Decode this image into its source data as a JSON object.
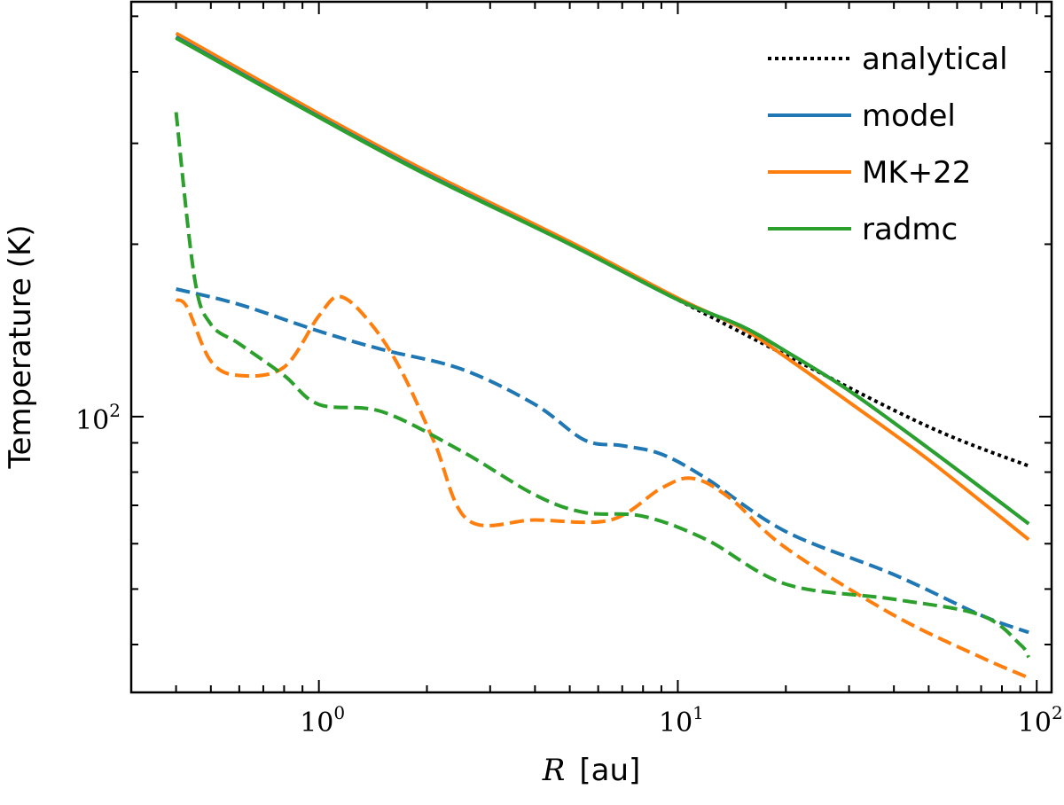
{
  "chart_data": {
    "type": "line",
    "title": "",
    "xlabel_var": "R",
    "xlabel_unit": "[au]",
    "ylabel": "Temperature (K)",
    "xscale": "log",
    "yscale": "log",
    "xlim": [
      0.3,
      110
    ],
    "ylim": [
      33,
      530
    ],
    "x_ticks": [
      {
        "value": 1,
        "base": "10",
        "exp": "0"
      },
      {
        "value": 10,
        "base": "10",
        "exp": "1"
      },
      {
        "value": 100,
        "base": "10",
        "exp": "2"
      }
    ],
    "y_ticks": [
      {
        "value": 100,
        "base": "10",
        "exp": "2"
      }
    ],
    "legend_position": "top-right",
    "legend": [
      {
        "label": "analytical",
        "color": "#000000",
        "style": "dotted"
      },
      {
        "label": "model",
        "color": "#1f77b4",
        "style": "solid"
      },
      {
        "label": "MK+22",
        "color": "#ff7f0e",
        "style": "solid"
      },
      {
        "label": "radmc",
        "color": "#2ca02c",
        "style": "solid"
      }
    ],
    "series": [
      {
        "name": "analytical",
        "color": "#000000",
        "style": "dotted",
        "x": [
          0.4,
          1,
          2,
          5,
          10,
          20,
          50,
          95
        ],
        "y": [
          460,
          334,
          265,
          200,
          160,
          128,
          96,
          82
        ]
      },
      {
        "name": "model",
        "color": "#1f77b4",
        "style": "solid",
        "x": [
          0.4,
          1,
          2,
          5,
          10,
          15,
          20,
          30,
          50,
          95
        ],
        "y": [
          460,
          334,
          265,
          200,
          160,
          144,
          130,
          111,
          88,
          65
        ]
      },
      {
        "name": "MK+22",
        "color": "#ff7f0e",
        "style": "solid",
        "x": [
          0.4,
          1,
          2,
          5,
          10,
          15,
          20,
          30,
          50,
          95
        ],
        "y": [
          467,
          338,
          268,
          202,
          161,
          143,
          127,
          106,
          84,
          61
        ]
      },
      {
        "name": "radmc",
        "color": "#2ca02c",
        "style": "solid",
        "x": [
          0.4,
          1,
          2,
          5,
          10,
          15,
          20,
          30,
          50,
          95
        ],
        "y": [
          458,
          333,
          264,
          200,
          160,
          144,
          130,
          111,
          88,
          65
        ]
      },
      {
        "name": "model (dashed)",
        "color": "#1f77b4",
        "style": "dashed",
        "x": [
          0.4,
          0.6,
          1,
          1.5,
          2.5,
          4,
          5.5,
          7,
          9,
          12,
          20,
          40,
          70,
          95
        ],
        "y": [
          167,
          157,
          141,
          131,
          121,
          105,
          91,
          89,
          86,
          78,
          63,
          53,
          45,
          42
        ]
      },
      {
        "name": "MK+22 (dashed)",
        "color": "#ff7f0e",
        "style": "dashed",
        "x": [
          0.4,
          0.43,
          0.5,
          0.6,
          0.8,
          1.0,
          1.15,
          1.4,
          1.7,
          2.1,
          2.6,
          4,
          6.5,
          9,
          11,
          14,
          20,
          40,
          70,
          95
        ],
        "y": [
          160,
          155,
          125,
          118,
          122,
          150,
          162,
          145,
          120,
          90,
          66,
          66,
          66,
          75,
          78,
          72,
          59,
          45,
          38,
          35
        ]
      },
      {
        "name": "radmc (dashed)",
        "color": "#2ca02c",
        "style": "dashed",
        "x": [
          0.4,
          0.45,
          0.5,
          0.6,
          0.8,
          1.0,
          1.5,
          2.5,
          4,
          5.5,
          8,
          12,
          20,
          40,
          70,
          90,
          95
        ],
        "y": [
          340,
          175,
          145,
          134,
          118,
          105,
          102,
          87,
          73,
          68,
          67,
          61,
          51,
          48,
          45,
          40,
          38
        ]
      }
    ]
  }
}
